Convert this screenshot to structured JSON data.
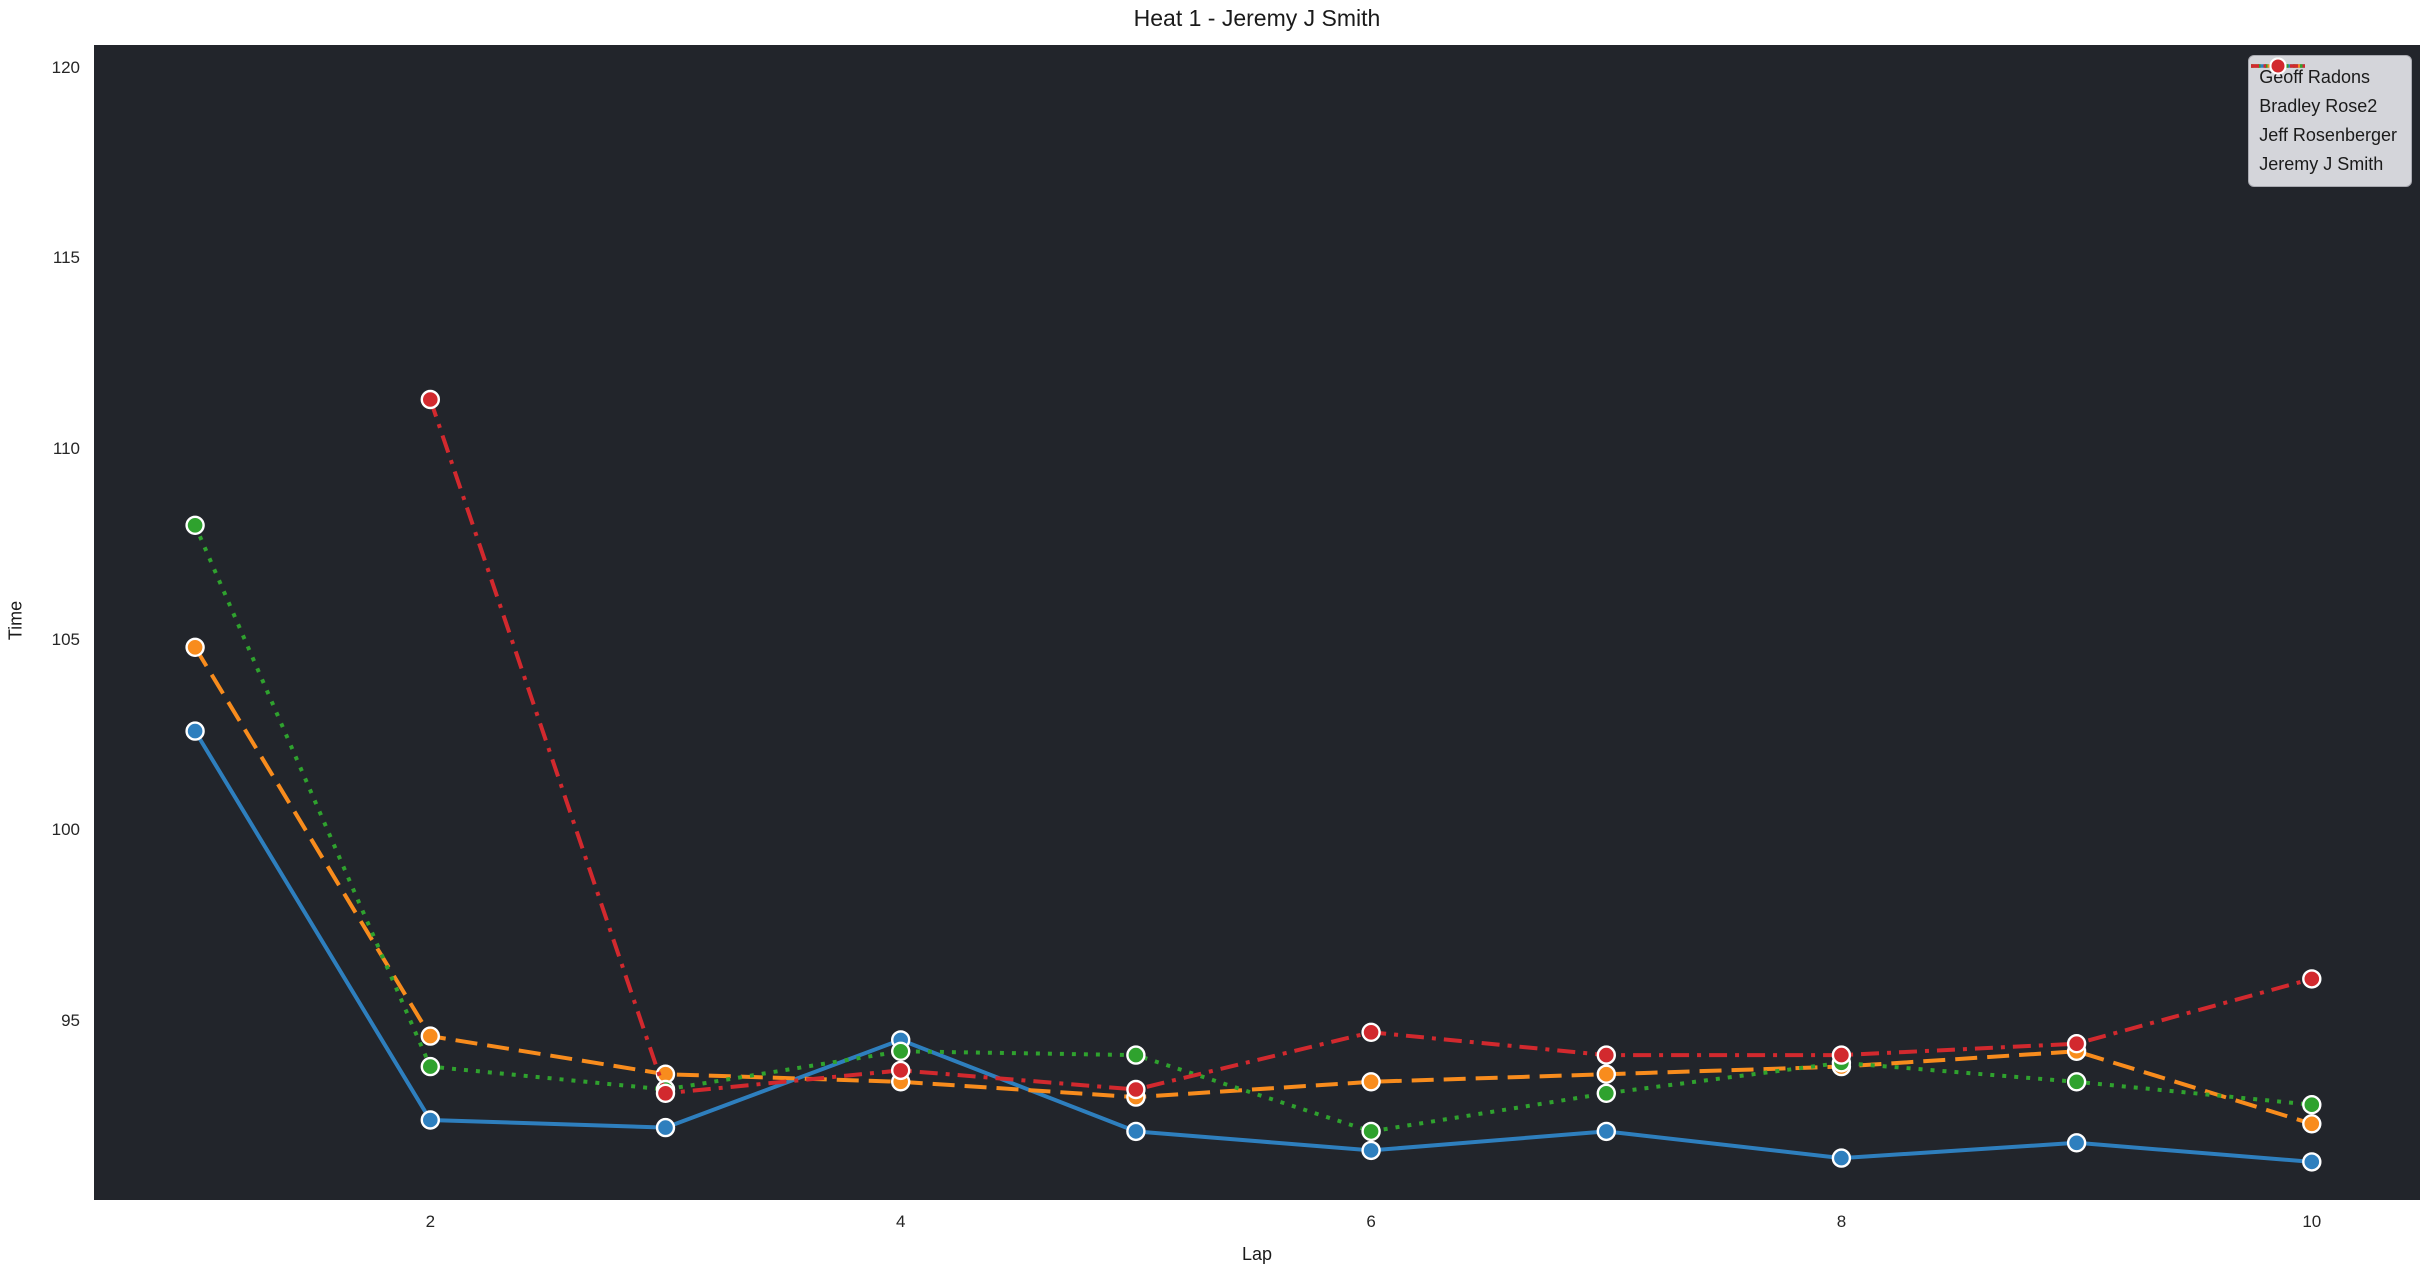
{
  "chart_data": {
    "type": "line",
    "title": "Heat 1 - Jeremy J Smith",
    "xlabel": "Lap",
    "ylabel": "Time",
    "xlim": [
      0.57,
      10.46
    ],
    "ylim": [
      90.3,
      120.6
    ],
    "x_ticks": [
      2,
      4,
      6,
      8,
      10
    ],
    "y_ticks": [
      95,
      100,
      105,
      110,
      115,
      120
    ],
    "grid": false,
    "legend_position": "top-right",
    "plot_bg": "#22252b",
    "figure_bg": "#ffffff",
    "marker": "circle",
    "series": [
      {
        "name": "Geoff Radons",
        "color": "#2e7fbe",
        "linestyle": "solid",
        "x": [
          1,
          2,
          3,
          4,
          5,
          6,
          7,
          8,
          9,
          10
        ],
        "values": [
          102.6,
          92.4,
          92.2,
          94.5,
          92.1,
          91.6,
          92.1,
          91.4,
          91.8,
          91.3
        ]
      },
      {
        "name": "Bradley Rose2",
        "color": "#f88c1d",
        "linestyle": "dashed",
        "x": [
          1,
          2,
          3,
          4,
          5,
          6,
          7,
          8,
          9,
          10
        ],
        "values": [
          104.8,
          94.6,
          93.6,
          93.4,
          93.0,
          93.4,
          93.6,
          93.8,
          94.2,
          92.3
        ]
      },
      {
        "name": "Jeff Rosenberger",
        "color": "#2fa22e",
        "linestyle": "dotted",
        "x": [
          1,
          2,
          3,
          4,
          5,
          6,
          7,
          8,
          9,
          10
        ],
        "values": [
          108.0,
          93.8,
          93.2,
          94.2,
          94.1,
          92.1,
          93.1,
          93.9,
          93.4,
          92.8
        ]
      },
      {
        "name": "Jeremy J Smith",
        "color": "#d2292e",
        "linestyle": "dashdot",
        "x": [
          2,
          3,
          4,
          5,
          6,
          7,
          8,
          9,
          10
        ],
        "values": [
          111.3,
          93.1,
          93.7,
          93.2,
          94.7,
          94.1,
          94.1,
          94.4,
          96.1
        ]
      }
    ]
  }
}
